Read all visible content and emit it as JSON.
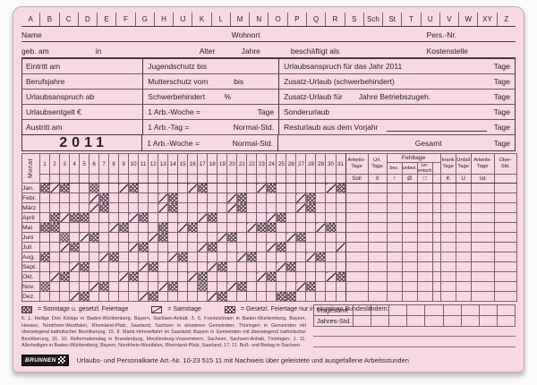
{
  "header": {
    "letters": [
      "A",
      "B",
      "C",
      "D",
      "E",
      "F",
      "G",
      "H",
      "IJ",
      "K",
      "L",
      "M",
      "N",
      "O",
      "P",
      "Q",
      "R",
      "S",
      "Sch",
      "St",
      "T",
      "U",
      "V",
      "W",
      "XY",
      "Z"
    ],
    "name_row": {
      "name": "Name",
      "wohnort": "Wohnort",
      "pers_nr": "Pers.-Nr."
    },
    "birth_row": {
      "geb_am": "geb. am",
      "in": "in",
      "alter": "Alter",
      "jahre": "Jahre",
      "beschaeftigt_als": "beschäftigt als",
      "kostenstelle": "Kostenstelle"
    }
  },
  "info_table": {
    "rows": [
      {
        "left": "Eintritt am",
        "mid_label": "Jugendschutz bis",
        "mid_unit": "",
        "right_label": "Urlaubsanspruch für das Jahr 2011",
        "right_label2": "",
        "right_unit": "Tage"
      },
      {
        "left": "Berufsjahre",
        "mid_label": "Mutterschutz vom",
        "mid_unit": "bis",
        "right_label": "Zusatz-Urlaub (schwerbehindert)",
        "right_label2": "",
        "right_unit": "Tage"
      },
      {
        "left": "Urlaubsanspruch ab",
        "mid_label": "Schwerbehindert",
        "mid_unit": "%",
        "right_label": "Zusatz-Urlaub für",
        "right_label2": "Jahre Betriebszugeh.",
        "right_unit": "Tage"
      },
      {
        "left": "Urlaubsentgelt €",
        "mid_label": "1 Arb.-Woche =",
        "mid_unit": "Tage",
        "right_label": "Sonderurlaub",
        "right_label2": "",
        "right_unit": "Tage"
      },
      {
        "left": "Austritt am",
        "mid_label": "1 Arb.-Tag   =",
        "mid_unit": "Normal-Std.",
        "right_label": "Resturlaub aus dem Vorjahr",
        "right_label2": "",
        "right_unit": "Tage"
      },
      {
        "left": "2011",
        "mid_label": "1 Arb.-Woche =",
        "mid_unit": "Normal-Std.",
        "right_label": "Gesamt",
        "right_label2": "",
        "right_unit": "Tage"
      }
    ],
    "year": "2011"
  },
  "calendar": {
    "monat_label": "Monat",
    "days": 31,
    "fehltage_label": "Fehltage",
    "columns": [
      {
        "label": "Arbeits-\nTage",
        "symbol": "Soll",
        "group": ""
      },
      {
        "label": "Url.\nTage",
        "symbol": "X",
        "group": ""
      },
      {
        "label": "bez.",
        "symbol": "/",
        "group": "Fehltage"
      },
      {
        "label": "unbez.",
        "symbol": "Ø",
        "group": "Fehltage"
      },
      {
        "label": "un-\nentsch.",
        "symbol": "□",
        "group": "Fehltage"
      },
      {
        "label": "",
        "symbol": "",
        "group": "Fehltage"
      },
      {
        "label": "krank\nTage",
        "symbol": "K",
        "group": ""
      },
      {
        "label": "Unfall\nTage",
        "symbol": "U",
        "group": ""
      },
      {
        "label": "Arbeits-\nTage",
        "symbol": "Ist",
        "group": ""
      },
      {
        "label": "Über-\nStd.",
        "symbol": "",
        "group": ""
      }
    ],
    "months": [
      {
        "name": "Jan.",
        "sun": [
          1,
          3,
          10,
          17,
          24,
          31
        ],
        "sat": [
          2,
          9,
          16,
          23,
          30
        ],
        "reg": [
          6
        ]
      },
      {
        "name": "Febr.",
        "sun": [
          7,
          14,
          21,
          28
        ],
        "sat": [
          6,
          13,
          20,
          27
        ],
        "reg": []
      },
      {
        "name": "März",
        "sun": [
          7,
          14,
          21,
          28
        ],
        "sat": [
          6,
          13,
          20,
          27
        ],
        "reg": []
      },
      {
        "name": "April",
        "sun": [
          2,
          4,
          5,
          11,
          18,
          25
        ],
        "sat": [
          3,
          10,
          17,
          24
        ],
        "reg": []
      },
      {
        "name": "Mai",
        "sun": [
          1,
          2,
          9,
          13,
          16,
          23,
          24,
          30
        ],
        "sat": [
          8,
          15,
          22,
          29
        ],
        "reg": []
      },
      {
        "name": "Juni",
        "sun": [
          6,
          13,
          20,
          27
        ],
        "sat": [
          5,
          12,
          19,
          26
        ],
        "reg": [
          3
        ]
      },
      {
        "name": "Juli",
        "sun": [
          4,
          11,
          18,
          25
        ],
        "sat": [
          3,
          10,
          17,
          24,
          31
        ],
        "reg": []
      },
      {
        "name": "Aug.",
        "sun": [
          1,
          8,
          15,
          22,
          29
        ],
        "sat": [
          7,
          14,
          21,
          28
        ],
        "reg": []
      },
      {
        "name": "Sept.",
        "sun": [
          5,
          12,
          19,
          26
        ],
        "sat": [
          4,
          11,
          18,
          25
        ],
        "reg": []
      },
      {
        "name": "Okt.",
        "sun": [
          3,
          10,
          17,
          24,
          31
        ],
        "sat": [
          2,
          9,
          16,
          23,
          30
        ],
        "reg": []
      },
      {
        "name": "Nov.",
        "sun": [
          7,
          14,
          21,
          28
        ],
        "sat": [
          6,
          13,
          20,
          27
        ],
        "reg": [
          1,
          17
        ]
      },
      {
        "name": "Dez.",
        "sun": [
          5,
          12,
          19,
          25,
          26
        ],
        "sat": [
          4,
          11,
          18
        ],
        "reg": []
      }
    ]
  },
  "legend": {
    "sun_label": "= Sonntage u. gesetzl. Feiertage",
    "sat_label": "= Samstage",
    "reg_label": "= Gesetzl. Feiertage nur in einzelnen Bundesländern:",
    "footnote": "6. 1. Heilige Drei Könige in Baden-Württemberg, Bayern, Sachsen-Anhalt, 3. 6. Fronleichnam in Baden-Württemberg, Bayern, Hessen, Nordrhein-Westfalen, Rheinland-Pfalz, Saarland; Sachsen in einzelnen Gemeinden; Thüringen in Gemeinden mit überwiegend katholischer Bevölkerung, 15. 8. Mariä Himmelfahrt im Saarland; Bayern in Gemeinden mit überwiegend katholischer Bevölkerung, 31. 10. Reformationstag in Brandenburg, Mecklenburg-Vorpommern, Sachsen, Sachsen-Anhalt, Thüringen, 1. 11. Allerheiligen in Baden-Württemberg, Bayern, Nordrhein-Westfalen, Rheinland-Pfalz, Saarland, 17. 11. Buß- und Bettag in Sachsen."
  },
  "totals": {
    "insgesamt_label": "Insgesamt",
    "jahres_std_label": "Jahres-Std.",
    "cells_per_row": 9
  },
  "footer": {
    "brand": "BRUNNEN",
    "text": "Urlaubs- und Personalkarte Art.-Nr. 10-23 515 11 mit Nachweis über geleistete und ausgefallene Arbeitsstunden"
  },
  "colors": {
    "card_background": "#f8d9e3",
    "line_thin": "#7d6070",
    "line_thick": "#42353d",
    "mark": "#43353d"
  }
}
